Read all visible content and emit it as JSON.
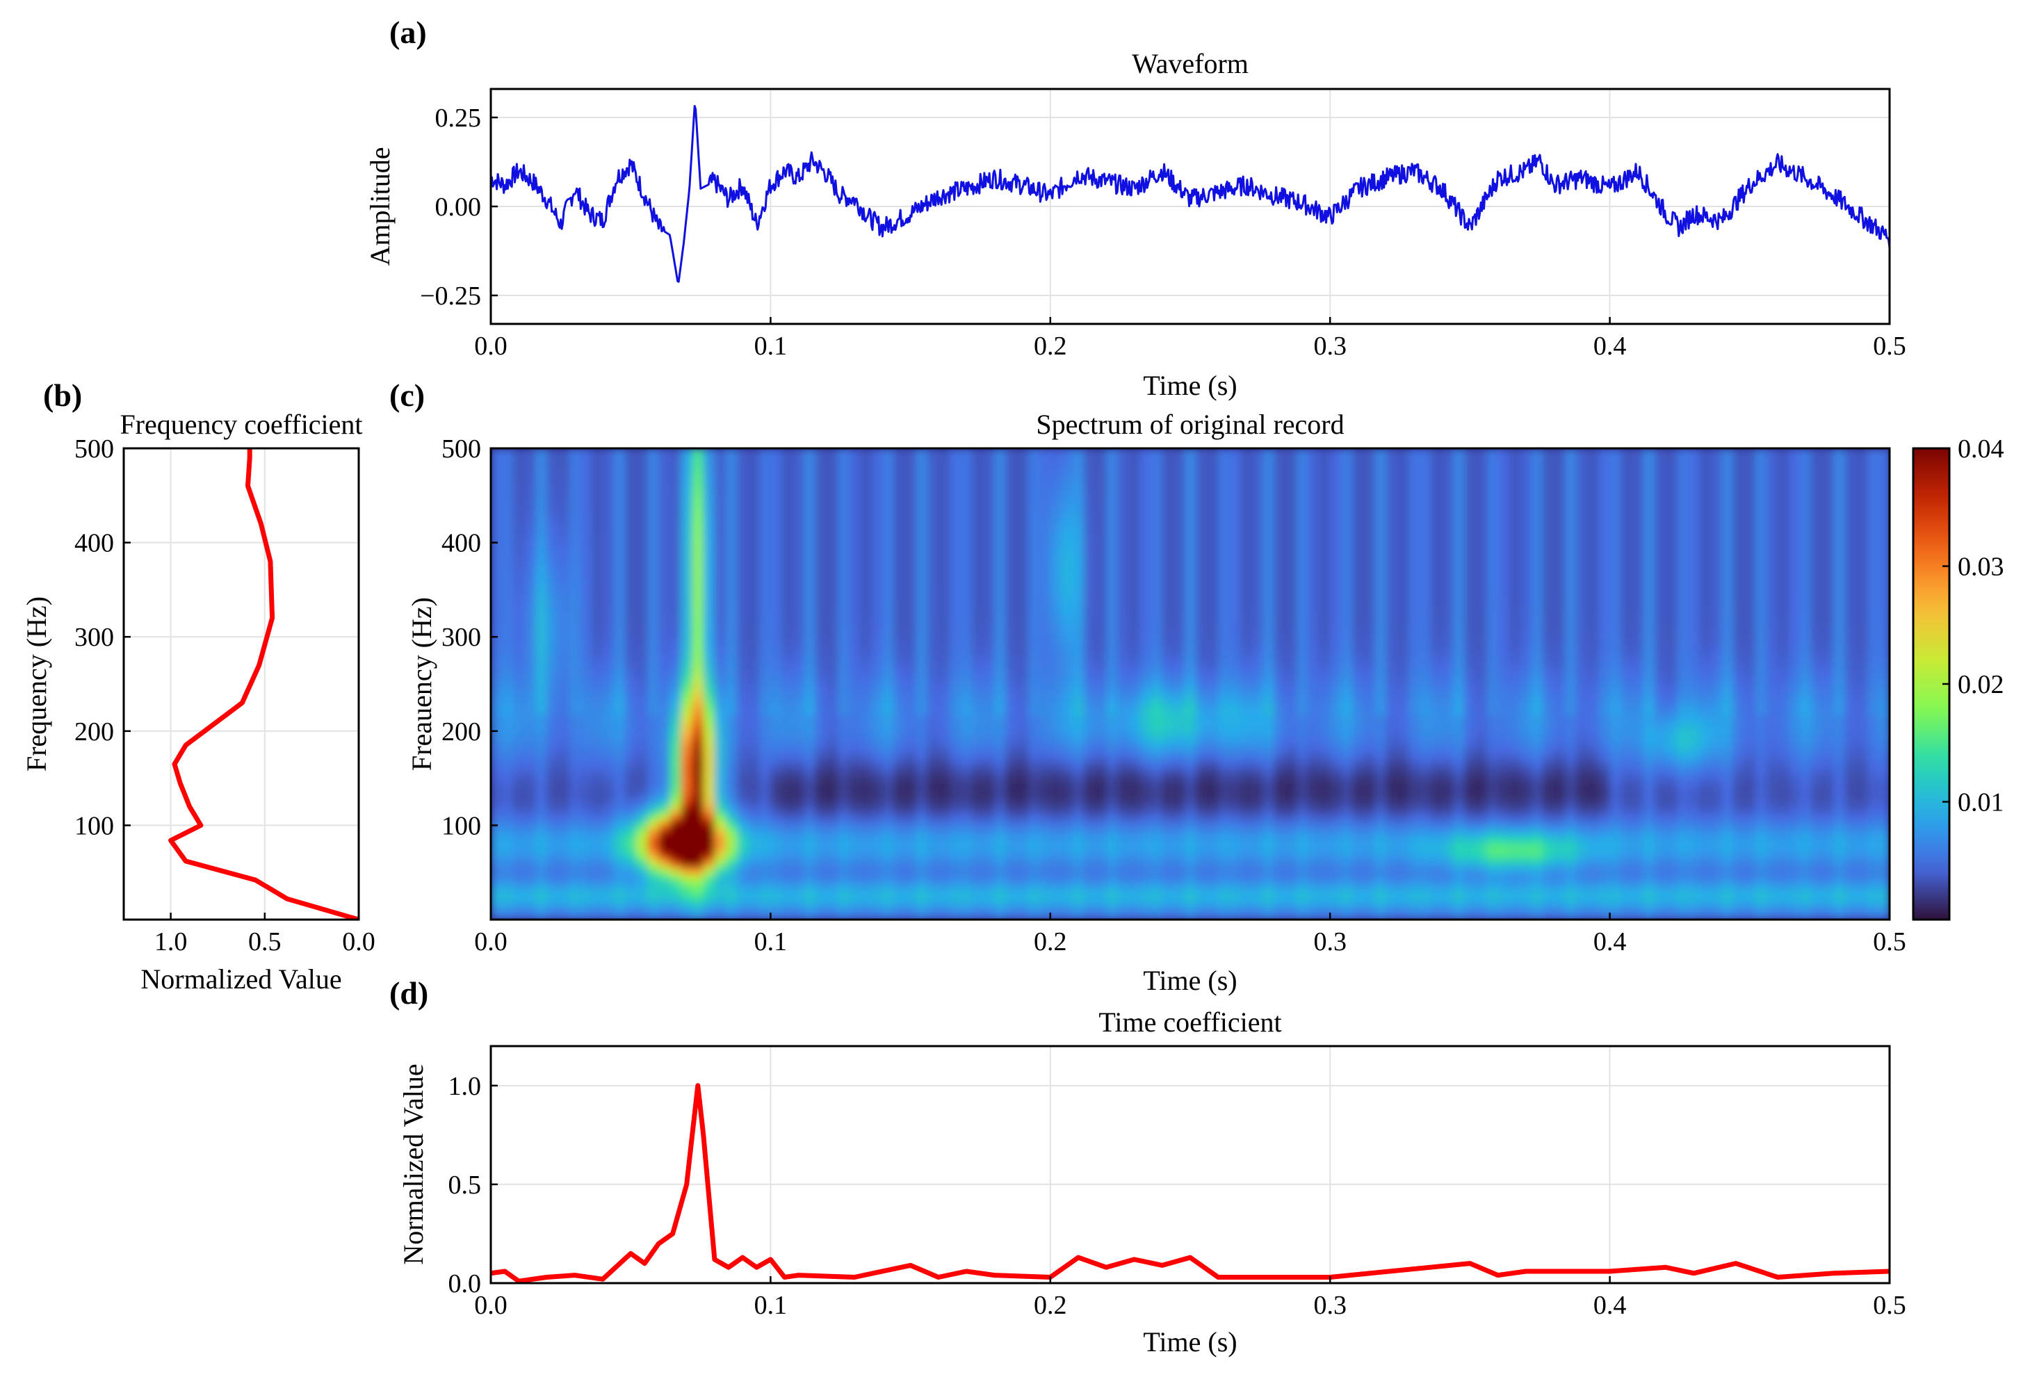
{
  "chart_data": [
    {
      "id": "a",
      "panel_label": "(a)",
      "type": "line",
      "title": "Waveform",
      "xlabel": "Time (s)",
      "ylabel": "Amplitude",
      "xlim": [
        0.0,
        0.5
      ],
      "ylim": [
        -0.33,
        0.33
      ],
      "xticks": [
        0.0,
        0.1,
        0.2,
        0.3,
        0.4,
        0.5
      ],
      "xtick_labels": [
        "0.0",
        "0.1",
        "0.2",
        "0.3",
        "0.4",
        "0.5"
      ],
      "yticks": [
        0.25,
        0.0,
        -0.25
      ],
      "ytick_labels": [
        "0.25",
        "0.00",
        "−0.25"
      ],
      "grid": true,
      "color": "#1010e0",
      "series": [
        {
          "name": "waveform",
          "x": [
            0.0,
            0.005,
            0.01,
            0.015,
            0.02,
            0.025,
            0.03,
            0.035,
            0.04,
            0.045,
            0.05,
            0.055,
            0.06,
            0.064,
            0.067,
            0.069,
            0.071,
            0.073,
            0.075,
            0.08,
            0.085,
            0.09,
            0.095,
            0.1,
            0.105,
            0.11,
            0.115,
            0.12,
            0.125,
            0.13,
            0.135,
            0.14,
            0.15,
            0.16,
            0.17,
            0.18,
            0.19,
            0.2,
            0.21,
            0.22,
            0.23,
            0.24,
            0.25,
            0.26,
            0.27,
            0.28,
            0.29,
            0.3,
            0.31,
            0.32,
            0.33,
            0.34,
            0.35,
            0.36,
            0.37,
            0.375,
            0.38,
            0.39,
            0.4,
            0.41,
            0.42,
            0.425,
            0.43,
            0.44,
            0.45,
            0.46,
            0.47,
            0.48,
            0.49,
            0.5
          ],
          "values": [
            0.08,
            0.06,
            0.1,
            0.07,
            0.02,
            -0.05,
            0.05,
            -0.02,
            -0.04,
            0.08,
            0.12,
            0.03,
            -0.06,
            -0.08,
            -0.22,
            -0.1,
            0.05,
            0.3,
            0.05,
            0.07,
            0.02,
            0.06,
            -0.05,
            0.06,
            0.1,
            0.08,
            0.13,
            0.09,
            0.03,
            0.02,
            -0.03,
            -0.06,
            -0.02,
            0.03,
            0.05,
            0.08,
            0.06,
            0.03,
            0.09,
            0.07,
            0.05,
            0.1,
            0.02,
            0.04,
            0.06,
            0.03,
            0.01,
            -0.03,
            0.05,
            0.08,
            0.1,
            0.05,
            -0.06,
            0.08,
            0.1,
            0.13,
            0.06,
            0.08,
            0.05,
            0.1,
            -0.02,
            -0.06,
            -0.02,
            -0.04,
            0.06,
            0.12,
            0.08,
            0.03,
            -0.03,
            -0.09
          ]
        }
      ]
    },
    {
      "id": "b",
      "panel_label": "(b)",
      "type": "line",
      "title": "Frequency coefficient",
      "xlabel": "Normalized Value",
      "ylabel": "Frequency (Hz)",
      "xlim": [
        1.25,
        0.0
      ],
      "ylim": [
        0,
        500
      ],
      "xticks": [
        1.0,
        0.5,
        0.0
      ],
      "xtick_labels": [
        "1.0",
        "0.5",
        "0.0"
      ],
      "yticks": [
        100,
        200,
        300,
        400,
        500
      ],
      "ytick_labels": [
        "100",
        "200",
        "300",
        "400",
        "500"
      ],
      "grid": true,
      "color": "#ff0000",
      "series": [
        {
          "name": "frequency coefficient",
          "normalized_value": [
            0.0,
            0.38,
            0.55,
            0.92,
            1.0,
            0.84,
            0.9,
            0.95,
            0.98,
            0.92,
            0.62,
            0.53,
            0.46,
            0.47,
            0.52,
            0.59,
            0.58,
            0.58
          ],
          "frequency_hz": [
            0,
            22,
            42,
            62,
            84,
            100,
            120,
            145,
            165,
            185,
            230,
            270,
            320,
            380,
            420,
            460,
            490,
            500
          ]
        }
      ]
    },
    {
      "id": "c",
      "panel_label": "(c)",
      "type": "heatmap",
      "title": "Spectrum of original record",
      "xlabel": "Time (s)",
      "ylabel": "Freauency (Hz)",
      "xlim": [
        0.0,
        0.5
      ],
      "ylim": [
        0,
        500
      ],
      "xticks": [
        0.0,
        0.1,
        0.2,
        0.3,
        0.4,
        0.5
      ],
      "xtick_labels": [
        "0.0",
        "0.1",
        "0.2",
        "0.3",
        "0.4",
        "0.5"
      ],
      "yticks": [
        100,
        200,
        300,
        400,
        500
      ],
      "ytick_labels": [
        "100",
        "200",
        "300",
        "400",
        "500"
      ],
      "colormap": "turbo",
      "color_range": [
        0.0,
        0.04
      ],
      "colorbar_ticks": [
        0.01,
        0.02,
        0.03,
        0.04
      ],
      "colorbar_labels": [
        "0.01",
        "0.02",
        "0.03",
        "0.04"
      ],
      "annotations": [
        "intense peak near 0.07 s and 60–200 Hz",
        "weaker activity near 0.36 s, 70 Hz"
      ]
    },
    {
      "id": "d",
      "panel_label": "(d)",
      "type": "line",
      "title": "Time coefficient",
      "xlabel": "Time (s)",
      "ylabel": "Normalized Value",
      "xlim": [
        0.0,
        0.5
      ],
      "ylim": [
        0.0,
        1.2
      ],
      "xticks": [
        0.0,
        0.1,
        0.2,
        0.3,
        0.4,
        0.5
      ],
      "xtick_labels": [
        "0.0",
        "0.1",
        "0.2",
        "0.3",
        "0.4",
        "0.5"
      ],
      "yticks": [
        0.0,
        0.5,
        1.0
      ],
      "ytick_labels": [
        "0.0",
        "0.5",
        "1.0"
      ],
      "grid": true,
      "color": "#ff0000",
      "series": [
        {
          "name": "time coefficient",
          "x": [
            0.0,
            0.005,
            0.01,
            0.02,
            0.03,
            0.04,
            0.05,
            0.055,
            0.06,
            0.065,
            0.07,
            0.072,
            0.074,
            0.076,
            0.08,
            0.085,
            0.09,
            0.095,
            0.1,
            0.105,
            0.11,
            0.13,
            0.15,
            0.16,
            0.17,
            0.18,
            0.2,
            0.21,
            0.22,
            0.23,
            0.24,
            0.25,
            0.26,
            0.3,
            0.35,
            0.36,
            0.37,
            0.4,
            0.42,
            0.43,
            0.445,
            0.46,
            0.48,
            0.5
          ],
          "values": [
            0.05,
            0.06,
            0.01,
            0.03,
            0.04,
            0.02,
            0.15,
            0.1,
            0.2,
            0.25,
            0.5,
            0.75,
            1.0,
            0.75,
            0.12,
            0.08,
            0.13,
            0.08,
            0.12,
            0.03,
            0.04,
            0.03,
            0.09,
            0.03,
            0.06,
            0.04,
            0.03,
            0.13,
            0.08,
            0.12,
            0.09,
            0.13,
            0.03,
            0.03,
            0.1,
            0.04,
            0.06,
            0.06,
            0.08,
            0.05,
            0.1,
            0.03,
            0.05,
            0.06
          ]
        }
      ]
    }
  ]
}
